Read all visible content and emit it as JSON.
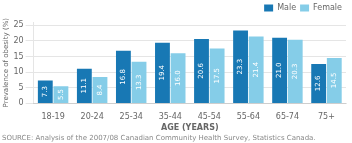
{
  "chart_data": {
    "type": "bar",
    "categories": [
      "18-19",
      "20-24",
      "25-34",
      "35-44",
      "45-54",
      "55-64",
      "65-74",
      "75+"
    ],
    "series": [
      {
        "name": "Male",
        "color": "#1878b4",
        "values": [
          7.3,
          11.1,
          16.8,
          19.4,
          20.6,
          23.3,
          21.0,
          12.6
        ],
        "value_labels": [
          "7.3",
          "11.1",
          "16.8",
          "19.4",
          "20.6",
          "23.3",
          "21.0",
          "12.6"
        ]
      },
      {
        "name": "Female",
        "color": "#85cde8",
        "values": [
          5.5,
          8.4,
          13.3,
          16.0,
          17.5,
          21.4,
          20.3,
          14.5
        ],
        "value_labels": [
          "5.5",
          "8.4",
          "13.3",
          "16.0",
          "17.5",
          "21.4",
          "20.3",
          "14.5"
        ]
      }
    ],
    "xlabel": "AGE (YEARS)",
    "ylabel": "Prevalence of obesity (%)",
    "ylim": [
      0,
      26
    ],
    "yticks": [
      0,
      5,
      10,
      15,
      20,
      25
    ],
    "grid": true,
    "legend": "upper right",
    "data_labels": true,
    "annotations": [
      "SOURCE: Analysis of the 2007/08 Canadian Community Health Survey, Statistics Canada."
    ]
  }
}
